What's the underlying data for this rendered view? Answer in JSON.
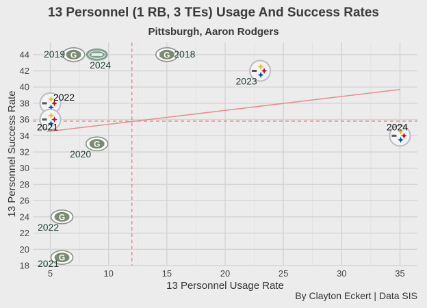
{
  "chart_data": {
    "type": "scatter",
    "title": "13 Personnel (1 RB, 3 TEs) Usage And Success Rates",
    "subtitle": "Pittsburgh, Aaron Rodgers",
    "xlabel": "13 Personnel Usage Rate",
    "ylabel": "13 Personnel Success Rate",
    "caption": "By Clayton Eckert | Data SIS",
    "xlim": [
      3.5,
      36.5
    ],
    "ylim": [
      18,
      45.5
    ],
    "x_ticks": [
      5,
      10,
      15,
      20,
      25,
      30,
      35
    ],
    "y_ticks": [
      18,
      20,
      22,
      24,
      26,
      28,
      30,
      32,
      34,
      36,
      38,
      40,
      42,
      44
    ],
    "grid": true,
    "reference_lines": {
      "x": 12,
      "y": 35.8
    },
    "trend_line": {
      "x": [
        4.7,
        35
      ],
      "y": [
        34.5,
        39.7
      ]
    },
    "colors": {
      "packers": "#203731",
      "packers_gold": "#ffb612",
      "jets": "#125740",
      "steelers_yellow": "#ffb612",
      "steelers_red": "#c60c30",
      "steelers_blue": "#00539b",
      "reference": "#e77c7c",
      "trend": "#e88b8b"
    },
    "points": [
      {
        "label": "2019",
        "x": 7,
        "y": 44,
        "team": "packers",
        "icon": "packers-logo-icon"
      },
      {
        "label": "2024",
        "x": 9,
        "y": 44,
        "team": "jets",
        "icon": "jets-logo-icon"
      },
      {
        "label": "2018",
        "x": 15,
        "y": 44,
        "team": "packers",
        "icon": "packers-logo-icon"
      },
      {
        "label": "2023",
        "x": 23,
        "y": 42,
        "team": "steelers",
        "icon": "steelers-logo-icon"
      },
      {
        "label": "2022",
        "x": 5,
        "y": 38,
        "team": "steelers",
        "icon": "steelers-logo-icon"
      },
      {
        "label": "2021",
        "x": 5,
        "y": 36,
        "team": "steelers",
        "icon": "steelers-logo-icon"
      },
      {
        "label": "2024",
        "x": 35,
        "y": 34,
        "team": "steelers",
        "icon": "steelers-logo-icon"
      },
      {
        "label": "2020",
        "x": 9,
        "y": 33,
        "team": "packers",
        "icon": "packers-logo-icon"
      },
      {
        "label": "2022",
        "x": 6,
        "y": 24,
        "team": "packers",
        "icon": "packers-logo-icon"
      },
      {
        "label": "2021",
        "x": 6,
        "y": 19,
        "team": "packers",
        "icon": "packers-logo-icon"
      }
    ]
  }
}
